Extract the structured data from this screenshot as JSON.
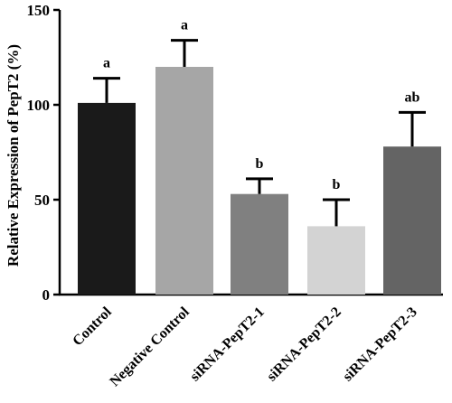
{
  "chart_data": {
    "type": "bar",
    "ylabel": "Relative Expression of PepT2 (%)",
    "ylim": [
      0,
      150
    ],
    "yticks": [
      0,
      50,
      100,
      150
    ],
    "categories": [
      "Control",
      "Negative Control",
      "siRNA-PepT2-1",
      "siRNA-PepT2-2",
      "siRNA-PepT2-3"
    ],
    "values": [
      101,
      120,
      53,
      36,
      78
    ],
    "errors": [
      13,
      14,
      8,
      14,
      18
    ],
    "significance": [
      "a",
      "a",
      "b",
      "b",
      "ab"
    ],
    "colors": [
      "#1a1a1a",
      "#a6a6a6",
      "#808080",
      "#d3d3d3",
      "#646464"
    ],
    "grid": false,
    "legend": "none"
  }
}
